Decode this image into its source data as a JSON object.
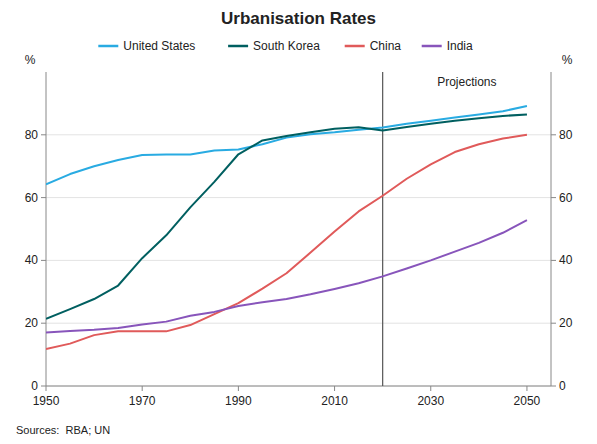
{
  "chart_data": {
    "type": "line",
    "title": "Urbanisation Rates",
    "ylabel": "%",
    "y2label": "%",
    "source": "Sources:  RBA; UN",
    "x": [
      1950,
      1955,
      1960,
      1965,
      1970,
      1975,
      1980,
      1985,
      1990,
      1995,
      2000,
      2005,
      2010,
      2015,
      2020,
      2025,
      2030,
      2035,
      2040,
      2045,
      2050
    ],
    "series": [
      {
        "name": "United States",
        "color": "#29abe2",
        "values": [
          64.2,
          67.5,
          70.0,
          72.0,
          73.6,
          73.7,
          73.7,
          75.0,
          75.3,
          77.0,
          79.1,
          80.2,
          80.8,
          81.6,
          82.3,
          83.5,
          84.5,
          85.5,
          86.5,
          87.5,
          89.2
        ]
      },
      {
        "name": "South Korea",
        "color": "#005f60",
        "values": [
          21.4,
          24.5,
          27.7,
          32.0,
          40.7,
          48.0,
          56.9,
          65.0,
          73.8,
          78.2,
          79.6,
          80.8,
          81.9,
          82.4,
          81.4,
          82.5,
          83.5,
          84.5,
          85.3,
          86.0,
          86.5
        ]
      },
      {
        "name": "China",
        "color": "#e05a5a",
        "values": [
          11.8,
          13.5,
          16.2,
          17.4,
          17.4,
          17.4,
          19.4,
          22.9,
          26.4,
          31.0,
          35.9,
          42.5,
          49.2,
          55.6,
          60.6,
          66.0,
          70.6,
          74.5,
          77.0,
          78.8,
          80.0
        ]
      },
      {
        "name": "India",
        "color": "#8855bb",
        "values": [
          17.0,
          17.5,
          17.9,
          18.5,
          19.6,
          20.5,
          22.4,
          23.6,
          25.5,
          26.7,
          27.7,
          29.2,
          30.9,
          32.7,
          34.9,
          37.4,
          40.0,
          42.8,
          45.6,
          48.8,
          52.8
        ]
      }
    ],
    "divider": {
      "x": 2020,
      "label": "Projections",
      "color": "#555555"
    },
    "xlim": [
      1950,
      2055
    ],
    "xticks": [
      1950,
      1970,
      1990,
      2010,
      2030,
      2050
    ],
    "ylim": [
      0,
      100
    ],
    "yticks": [
      0,
      20,
      40,
      60,
      80
    ],
    "y2lim": [
      0,
      100
    ],
    "y2ticks": [
      0,
      20,
      40,
      60,
      80
    ],
    "grid": true,
    "legend": "top"
  }
}
